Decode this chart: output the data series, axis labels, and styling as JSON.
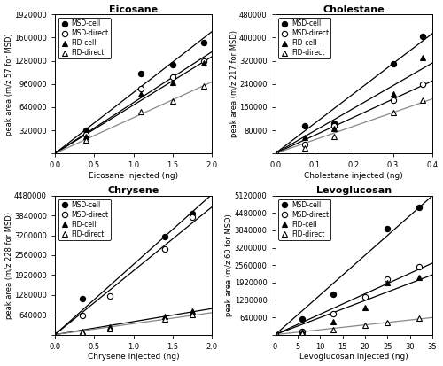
{
  "panels": [
    {
      "title": "Eicosane",
      "xlabel": "Eicosane injected (ng)",
      "ylabel": "peak area (m/z 57 for MSD)",
      "xlim": [
        0,
        2.0
      ],
      "ylim": [
        0,
        1920000
      ],
      "yticks": [
        0,
        320000,
        640000,
        960000,
        1280000,
        1600000,
        1920000
      ],
      "xticks": [
        0,
        0.5,
        1.0,
        1.5,
        2.0
      ],
      "series": {
        "MSD-cell": {
          "x": [
            0,
            0.4,
            1.1,
            1.5,
            1.9
          ],
          "y": [
            0,
            320000,
            1100000,
            1230000,
            1530000
          ]
        },
        "MSD-direct": {
          "x": [
            0,
            0.4,
            1.1,
            1.5,
            1.9
          ],
          "y": [
            0,
            260000,
            900000,
            1050000,
            1270000
          ]
        },
        "FID-cell": {
          "x": [
            0,
            0.4,
            1.1,
            1.5,
            1.9
          ],
          "y": [
            0,
            230000,
            820000,
            980000,
            1250000
          ]
        },
        "FID-direct": {
          "x": [
            0,
            0.4,
            1.1,
            1.5,
            1.9
          ],
          "y": [
            0,
            190000,
            580000,
            730000,
            930000
          ]
        }
      }
    },
    {
      "title": "Cholestane",
      "xlabel": "Cholestane injected (ng)",
      "ylabel": "peak area (m/z 217 for MSD)",
      "xlim": [
        0,
        0.4
      ],
      "ylim": [
        0,
        480000
      ],
      "yticks": [
        0,
        80000,
        160000,
        240000,
        320000,
        400000,
        480000
      ],
      "xticks": [
        0,
        0.1,
        0.2,
        0.3,
        0.4
      ],
      "series": {
        "MSD-cell": {
          "x": [
            0,
            0.075,
            0.15,
            0.3,
            0.375
          ],
          "y": [
            0,
            96000,
            105000,
            310000,
            405000
          ]
        },
        "MSD-direct": {
          "x": [
            0,
            0.075,
            0.15,
            0.3,
            0.375
          ],
          "y": [
            0,
            30000,
            95000,
            185000,
            240000
          ]
        },
        "FID-cell": {
          "x": [
            0,
            0.075,
            0.15,
            0.3,
            0.375
          ],
          "y": [
            0,
            55000,
            85000,
            205000,
            330000
          ]
        },
        "FID-direct": {
          "x": [
            0,
            0.075,
            0.15,
            0.3,
            0.375
          ],
          "y": [
            0,
            20000,
            60000,
            140000,
            185000
          ]
        }
      }
    },
    {
      "title": "Chrysene",
      "xlabel": "Chrysene injected (ng)",
      "ylabel": "peak area (m/z 228 for MSD)",
      "xlim": [
        0,
        2.0
      ],
      "ylim": [
        0,
        4480000
      ],
      "yticks": [
        0,
        640000,
        1280000,
        1920000,
        2560000,
        3200000,
        3840000,
        4480000
      ],
      "xticks": [
        0,
        0.5,
        1.0,
        1.5,
        2.0
      ],
      "series": {
        "MSD-cell": {
          "x": [
            0,
            0.35,
            1.4,
            1.75
          ],
          "y": [
            0,
            1150000,
            3150000,
            3900000
          ]
        },
        "MSD-direct": {
          "x": [
            0,
            0.35,
            0.7,
            1.4,
            1.75
          ],
          "y": [
            0,
            620000,
            1260000,
            2750000,
            3800000
          ]
        },
        "FID-cell": {
          "x": [
            0,
            0.35,
            0.7,
            1.4,
            1.75
          ],
          "y": [
            0,
            100000,
            260000,
            600000,
            750000
          ]
        },
        "FID-direct": {
          "x": [
            0,
            0.35,
            0.7,
            1.4,
            1.75
          ],
          "y": [
            0,
            70000,
            200000,
            510000,
            640000
          ]
        }
      }
    },
    {
      "title": "Levoglucosan",
      "xlabel": "Levoglucosan injected (ng)",
      "ylabel": "peak area (m/z 60 for MSD)",
      "xlim": [
        0,
        35
      ],
      "ylim": [
        0,
        5120000
      ],
      "yticks": [
        0,
        640000,
        1280000,
        1920000,
        2560000,
        3200000,
        3840000,
        4480000,
        5120000
      ],
      "xticks": [
        0,
        5,
        10,
        15,
        20,
        25,
        30,
        35
      ],
      "series": {
        "MSD-cell": {
          "x": [
            0,
            6,
            13,
            25,
            32
          ],
          "y": [
            0,
            560000,
            1500000,
            3900000,
            4700000
          ]
        },
        "MSD-direct": {
          "x": [
            0,
            6,
            13,
            20,
            25,
            32
          ],
          "y": [
            0,
            130000,
            760000,
            1380000,
            2050000,
            2500000
          ]
        },
        "FID-cell": {
          "x": [
            0,
            6,
            13,
            20,
            25,
            32
          ],
          "y": [
            0,
            110000,
            490000,
            1000000,
            1900000,
            2100000
          ]
        },
        "FID-direct": {
          "x": [
            0,
            6,
            13,
            20,
            25,
            32
          ],
          "y": [
            0,
            50000,
            200000,
            360000,
            450000,
            600000
          ]
        }
      }
    }
  ],
  "legend_order": [
    "MSD-cell",
    "MSD-direct",
    "FID-cell",
    "FID-direct"
  ],
  "figure_bg": "#ffffff"
}
